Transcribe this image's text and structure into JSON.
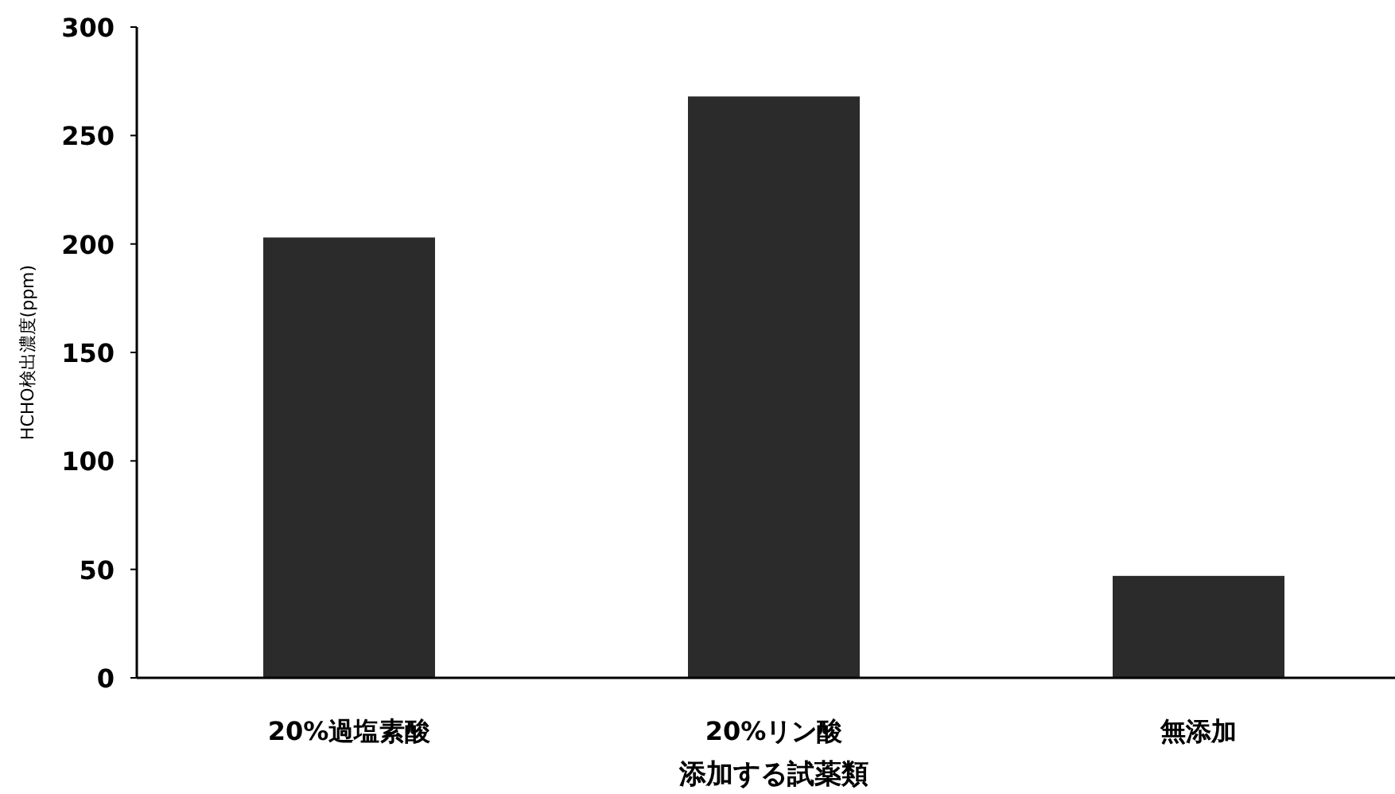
{
  "chart_data": {
    "type": "bar",
    "xlabel": "添加する試薬類",
    "ylabel": "HCHO検出濃度(ppm)",
    "categories": [
      "20%過塩素酸",
      "20%リン酸",
      "無添加"
    ],
    "values": [
      203,
      268,
      47
    ],
    "color": "#2b2b2b",
    "ylim": [
      0,
      300
    ],
    "yticks": [
      0,
      50,
      100,
      150,
      200,
      250,
      300
    ]
  }
}
